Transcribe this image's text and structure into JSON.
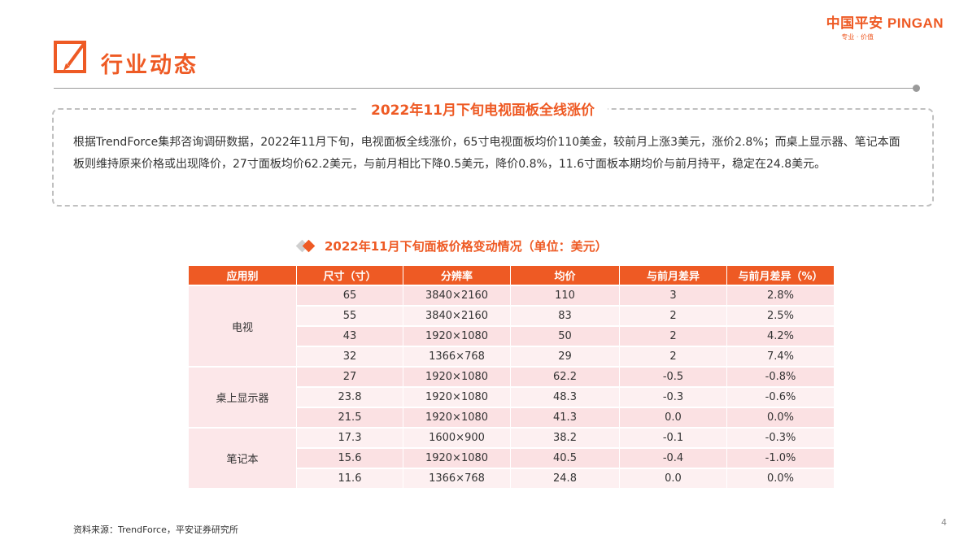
{
  "brand": {
    "name": "中国平安 PINGAN",
    "tagline": "专业 · 价值"
  },
  "page": {
    "title": "行业动态",
    "number": "4"
  },
  "summary": {
    "heading": "2022年11月下旬电视面板全线涨价",
    "text": "根据TrendForce集邦咨询调研数据，2022年11月下旬，电视面板全线涨价，65寸电视面板均价110美金，较前月上涨3美元，涨价2.8%；而桌上显示器、笔记本面板则维持原来价格或出现降价，27寸面板均价62.2美元，与前月相比下降0.5美元，降价0.8%，11.6寸面板本期均价与前月持平，稳定在24.8美元。"
  },
  "table": {
    "title": "2022年11月下旬面板价格变动情况（单位：美元）",
    "headers": [
      "应用别",
      "尺寸（寸）",
      "分辨率",
      "均价",
      "与前月差异",
      "与前月差异（%）"
    ],
    "groups": [
      {
        "name": "电视",
        "rows": [
          [
            "65",
            "3840×2160",
            "110",
            "3",
            "2.8%"
          ],
          [
            "55",
            "3840×2160",
            "83",
            "2",
            "2.5%"
          ],
          [
            "43",
            "1920×1080",
            "50",
            "2",
            "4.2%"
          ],
          [
            "32",
            "1366×768",
            "29",
            "2",
            "7.4%"
          ]
        ]
      },
      {
        "name": "桌上显示器",
        "rows": [
          [
            "27",
            "1920×1080",
            "62.2",
            "-0.5",
            "-0.8%"
          ],
          [
            "23.8",
            "1920×1080",
            "48.3",
            "-0.3",
            "-0.6%"
          ],
          [
            "21.5",
            "1920×1080",
            "41.3",
            "0.0",
            "0.0%"
          ]
        ]
      },
      {
        "name": "笔记本",
        "rows": [
          [
            "17.3",
            "1600×900",
            "38.2",
            "-0.1",
            "-0.3%"
          ],
          [
            "15.6",
            "1920×1080",
            "40.5",
            "-0.4",
            "-1.0%"
          ],
          [
            "11.6",
            "1366×768",
            "24.8",
            "0.0",
            "0.0%"
          ]
        ]
      }
    ]
  },
  "source": "资料来源：TrendForce，平安证券研究所",
  "colors": {
    "accent": "#ee5a24",
    "row_odd": "#fbe1e3",
    "row_even": "#fdf0f1",
    "rule": "#9a9a9a"
  }
}
